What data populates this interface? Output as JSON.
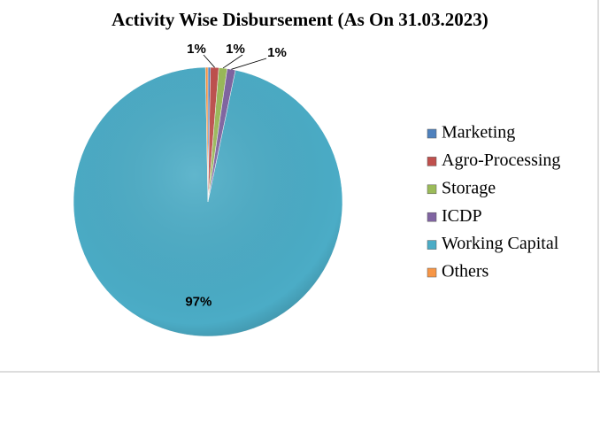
{
  "chart_data": {
    "type": "pie",
    "title": "Activity Wise Disbursement (As On 31.03.2023)",
    "categories": [
      "Marketing",
      "Agro-Processing",
      "Storage",
      "ICDP",
      "Working Capital",
      "Others"
    ],
    "values": [
      0.3,
      1,
      1,
      1,
      97,
      0.3
    ],
    "value_labels": [
      null,
      "1%",
      "1%",
      "1%",
      "97%",
      null
    ],
    "colors": [
      "#4f81bd",
      "#c0504d",
      "#9bbb59",
      "#8064a2",
      "#4bacc6",
      "#f79646"
    ],
    "legend": "right"
  }
}
